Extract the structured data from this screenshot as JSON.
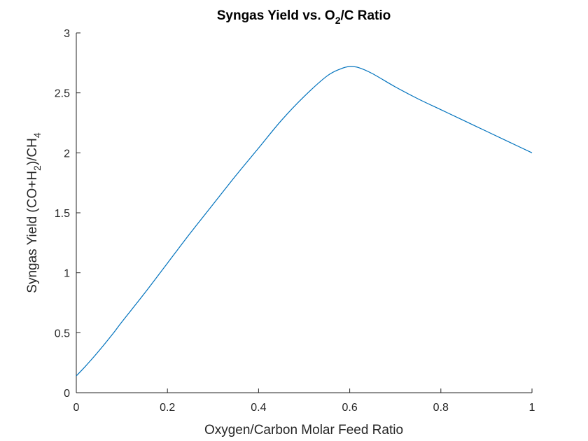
{
  "chart_data": {
    "type": "line",
    "title": {
      "pre": "Syngas Yield vs. O",
      "sub": "2",
      "post": "/C Ratio"
    },
    "xlabel": "Oxygen/Carbon Molar Feed Ratio",
    "ylabel": {
      "p1": "Syngas Yield (CO+H",
      "s1": "2",
      "p2": ")/CH",
      "s2": "4"
    },
    "xlim": [
      0,
      1
    ],
    "ylim": [
      0,
      3
    ],
    "x_ticks": [
      0,
      0.2,
      0.4,
      0.6,
      0.8,
      1
    ],
    "x_tick_labels": [
      "0",
      "0.2",
      "0.4",
      "0.6",
      "0.8",
      "1"
    ],
    "y_ticks": [
      0,
      0.5,
      1,
      1.5,
      2,
      2.5,
      3
    ],
    "y_tick_labels": [
      "0",
      "0.5",
      "1",
      "1.5",
      "2",
      "2.5",
      "3"
    ],
    "grid": false,
    "colors": {
      "line": "#0072BD",
      "axis": "#262626"
    },
    "series": [
      {
        "x": [
          0,
          0.02,
          0.05,
          0.08,
          0.1,
          0.15,
          0.2,
          0.25,
          0.3,
          0.35,
          0.4,
          0.45,
          0.5,
          0.55,
          0.58,
          0.6,
          0.62,
          0.65,
          0.7,
          0.75,
          0.8,
          0.85,
          0.9,
          0.95,
          1.0
        ],
        "y": [
          0.14,
          0.22,
          0.35,
          0.49,
          0.59,
          0.83,
          1.08,
          1.33,
          1.57,
          1.81,
          2.04,
          2.27,
          2.47,
          2.64,
          2.7,
          2.72,
          2.71,
          2.66,
          2.55,
          2.45,
          2.36,
          2.27,
          2.18,
          2.09,
          2.0
        ]
      }
    ]
  }
}
